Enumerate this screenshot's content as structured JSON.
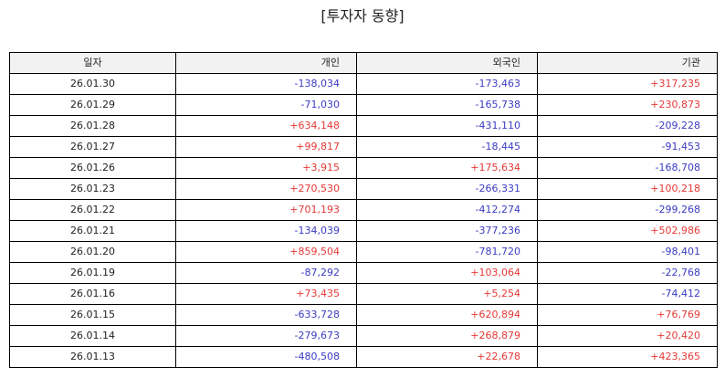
{
  "title": "[투자자 동향]",
  "colors": {
    "positive": "#e53935",
    "negative": "#3b3bc4",
    "header_bg": "#f2f2f2",
    "border": "#000000"
  },
  "table": {
    "headers": [
      "일자",
      "개인",
      "외국인",
      "기관"
    ],
    "rows": [
      [
        "26.01.30",
        "-138,034",
        "-173,463",
        "+317,235"
      ],
      [
        "26.01.29",
        "-71,030",
        "-165,738",
        "+230,873"
      ],
      [
        "26.01.28",
        "+634,148",
        "-431,110",
        "-209,228"
      ],
      [
        "26.01.27",
        "+99,817",
        "-18,445",
        "-91,453"
      ],
      [
        "26.01.26",
        "+3,915",
        "+175,634",
        "-168,708"
      ],
      [
        "26.01.23",
        "+270,530",
        "-266,331",
        "+100,218"
      ],
      [
        "26.01.22",
        "+701,193",
        "-412,274",
        "-299,268"
      ],
      [
        "26.01.21",
        "-134,039",
        "-377,236",
        "+502,986"
      ],
      [
        "26.01.20",
        "+859,504",
        "-781,720",
        "-98,401"
      ],
      [
        "26.01.19",
        "-87,292",
        "+103,064",
        "-22,768"
      ],
      [
        "26.01.16",
        "+73,435",
        "+5,254",
        "-74,412"
      ],
      [
        "26.01.15",
        "-633,728",
        "+620,894",
        "+76,769"
      ],
      [
        "26.01.14",
        "-279,673",
        "+268,879",
        "+20,420"
      ],
      [
        "26.01.13",
        "-480,508",
        "+22,678",
        "+423,365"
      ]
    ]
  }
}
